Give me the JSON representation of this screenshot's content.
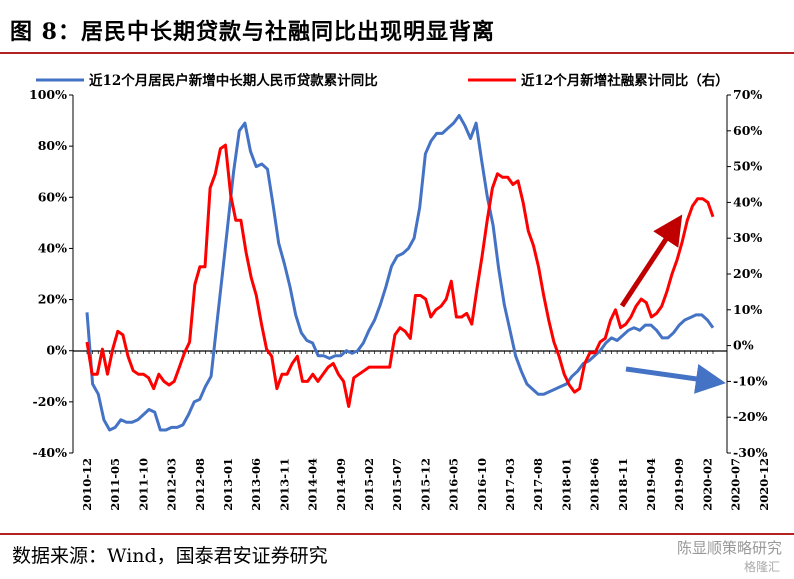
{
  "title": "图 8：居民中长期贷款与社融同比出现明显背离",
  "source": "数据来源：Wind，国泰君安证券研究",
  "watermark": "陈显顺策略研究",
  "watermark_sub": "格隆汇",
  "chart_data": {
    "type": "line",
    "legend_position": "top",
    "grid": false,
    "x_tick_labels": [
      "2010-12",
      "2011-05",
      "2011-10",
      "2012-03",
      "2012-08",
      "2013-01",
      "2013-06",
      "2013-11",
      "2014-04",
      "2014-09",
      "2015-02",
      "2015-07",
      "2015-12",
      "2016-05",
      "2016-10",
      "2017-03",
      "2017-08",
      "2018-01",
      "2018-06",
      "2018-11",
      "2019-04",
      "2019-09",
      "2020-02",
      "2020-07",
      "2020-12"
    ],
    "left_axis": {
      "ylim": [
        -40,
        100
      ],
      "ticks": [
        "-40%",
        "-20%",
        "0%",
        "20%",
        "40%",
        "60%",
        "80%",
        "100%"
      ]
    },
    "right_axis": {
      "ylim": [
        -30,
        70
      ],
      "ticks": [
        "-30%",
        "-20%",
        "-10%",
        "0%",
        "10%",
        "20%",
        "30%",
        "40%",
        "50%",
        "60%",
        "70%"
      ]
    },
    "series": [
      {
        "name": "近12个月居民户新增中长期人民币贷款累计同比",
        "axis": "left",
        "color": "#4472c4",
        "values": [
          15,
          -13,
          -17,
          -27,
          -31,
          -30,
          -27,
          -28,
          -28,
          -27,
          -25,
          -23,
          -24,
          -31,
          -31,
          -30,
          -30,
          -29,
          -25,
          -20,
          -19,
          -14,
          -10,
          10,
          30,
          50,
          70,
          86,
          89,
          78,
          72,
          73,
          71,
          57,
          42,
          34,
          25,
          14,
          7,
          4,
          3,
          -2,
          -2,
          -3,
          -2,
          -2,
          0,
          -1,
          0,
          3,
          8,
          12,
          18,
          25,
          33,
          37,
          38,
          40,
          44,
          56,
          77,
          82,
          85,
          85,
          87,
          89,
          92,
          88,
          83,
          89,
          74,
          60,
          49,
          32,
          18,
          8,
          -2,
          -8,
          -13,
          -15,
          -17,
          -17,
          -16,
          -15,
          -14,
          -13,
          -10,
          -8,
          -5,
          -4,
          -2,
          0,
          3,
          5,
          4,
          6,
          8,
          9,
          8,
          10,
          10,
          8,
          5,
          5,
          7,
          10,
          12,
          13,
          14,
          14,
          12,
          9
        ]
      },
      {
        "name": "近12个月新增社融累计同比（右）",
        "axis": "right",
        "color": "#ff0000",
        "values": [
          1,
          -8,
          -8,
          -1,
          -8,
          -1,
          4,
          3,
          -3,
          -7,
          -8,
          -8,
          -9,
          -12,
          -8,
          -10,
          -11,
          -10,
          -6,
          -2,
          1,
          17,
          22,
          22,
          44,
          48,
          55,
          56,
          42,
          35,
          35,
          26,
          19,
          14,
          6,
          -1,
          -3,
          -12,
          -8,
          -8,
          -5,
          -3,
          -10,
          -10,
          -8,
          -10,
          -8,
          -6,
          -5,
          -8,
          -10,
          -17,
          -9,
          -8,
          -7,
          -6,
          -6,
          -6,
          -6,
          -6,
          3,
          5,
          4,
          2,
          14,
          14,
          13,
          8,
          10,
          11,
          13,
          18,
          8,
          8,
          9,
          6,
          16,
          25,
          35,
          44,
          48,
          47,
          47,
          45,
          46,
          40,
          32,
          28,
          22,
          14,
          7,
          1,
          -3,
          -8,
          -11,
          -13,
          -12,
          -5,
          -2,
          -2,
          1,
          2,
          7,
          10,
          5,
          6,
          8,
          11,
          13,
          12,
          8,
          9,
          11,
          15,
          20,
          24,
          29,
          35,
          39,
          41,
          41,
          40,
          36
        ]
      }
    ],
    "annotations": [
      {
        "type": "arrow",
        "color": "#c00000",
        "direction": "up-right"
      },
      {
        "type": "arrow",
        "color": "#4472c4",
        "direction": "right"
      }
    ]
  }
}
